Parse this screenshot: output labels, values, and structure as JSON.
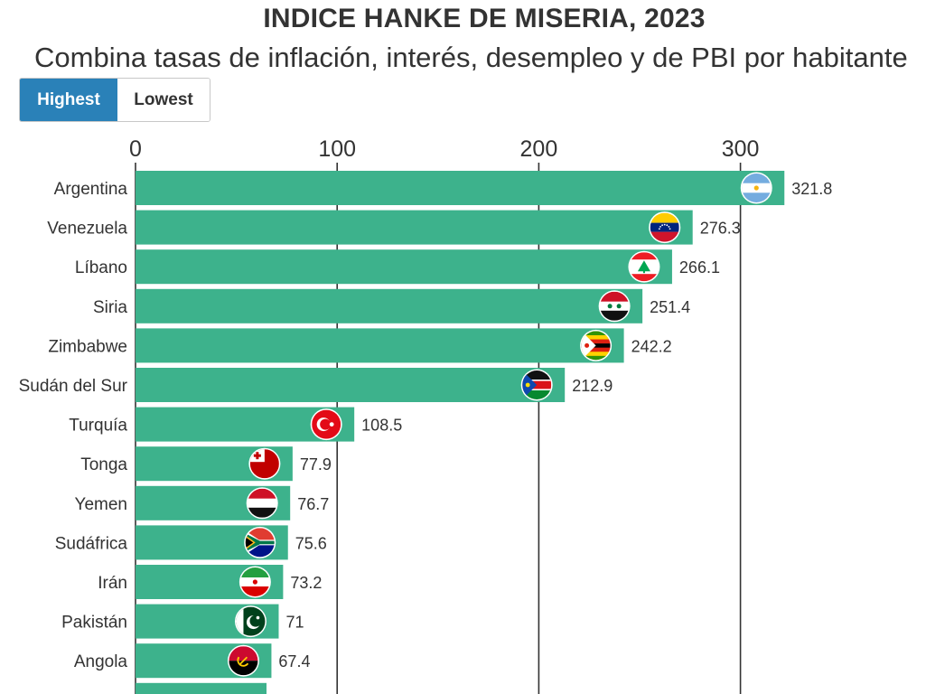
{
  "chart_data": {
    "type": "bar",
    "orientation": "horizontal",
    "title": "INDICE HANKE DE MISERIA, 2023",
    "subtitle": "Combina tasas de inflación, interés, desempleo y de PBI por habitante",
    "xlim": [
      0,
      330
    ],
    "xticks": [
      0,
      100,
      200,
      300
    ],
    "grid": true,
    "bar_color": "#3db28c",
    "categories": [
      "Argentina",
      "Venezuela",
      "Líbano",
      "Siria",
      "Zimbabwe",
      "Sudán del Sur",
      "Turquía",
      "Tonga",
      "Yemen",
      "Sudáfrica",
      "Irán",
      "Pakistán",
      "Angola"
    ],
    "values": [
      321.8,
      276.3,
      266.1,
      251.4,
      242.2,
      212.9,
      108.5,
      77.9,
      76.7,
      75.6,
      73.2,
      71,
      67.4
    ],
    "value_labels": [
      "321.8",
      "276.3",
      "266.1",
      "251.4",
      "242.2",
      "212.9",
      "108.5",
      "77.9",
      "76.7",
      "75.6",
      "73.2",
      "71",
      "67.4"
    ],
    "flags": [
      "argentina-flag",
      "venezuela-flag",
      "lebanon-flag",
      "syria-flag",
      "zimbabwe-flag",
      "south-sudan-flag",
      "turkey-flag",
      "tonga-flag",
      "yemen-flag",
      "south-africa-flag",
      "iran-flag",
      "pakistan-flag",
      "angola-flag"
    ]
  },
  "controls": {
    "highest_label": "Highest",
    "lowest_label": "Lowest",
    "active_color": "#2a81b8"
  }
}
